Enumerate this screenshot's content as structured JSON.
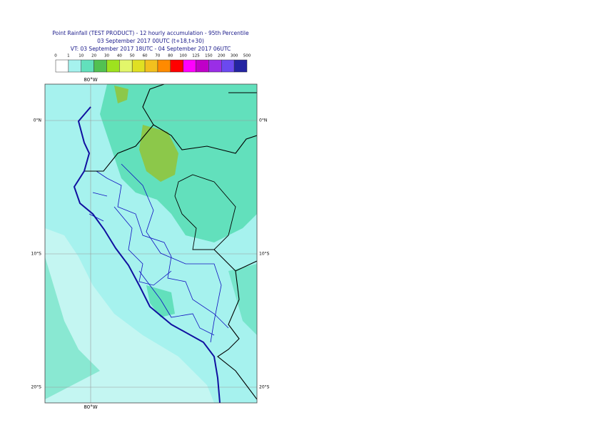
{
  "header": {
    "title": [
      "Point Rainfall (TEST PRODUCT) - 12 hourly accumulation - 95th Percentile",
      "03 September 2017 00UTC (t+18,t+30)",
      "VT: 03 September 2017 18UTC - 04 September 2017 06UTC"
    ]
  },
  "legend": {
    "labels": [
      "0",
      "1",
      "10",
      "20",
      "30",
      "40",
      "50",
      "60",
      "70",
      "80",
      "100",
      "125",
      "150",
      "200",
      "300",
      "500"
    ],
    "colors": [
      "#ffffff",
      "#a6f2ee",
      "#62e0bc",
      "#52c152",
      "#9ee21e",
      "#e2f66a",
      "#e0e022",
      "#f2c01e",
      "#ff8a00",
      "#ff0000",
      "#ff00ff",
      "#c000c8",
      "#9a2ee6",
      "#6b49f0",
      "#2424a2",
      "#12125e"
    ]
  },
  "map": {
    "lon_labels": [
      "80°W",
      "80°W"
    ],
    "lat_labels": [
      "0°N",
      "10°S",
      "20°S"
    ]
  }
}
